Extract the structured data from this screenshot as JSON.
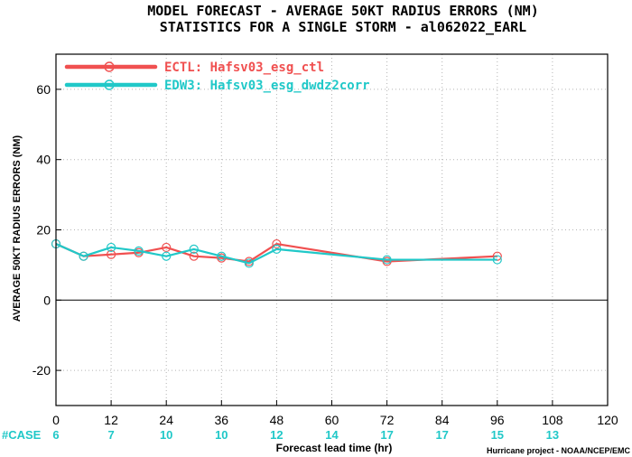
{
  "chart_data": {
    "type": "line",
    "title": "MODEL FORECAST - AVERAGE 50KT RADIUS ERRORS (NM)",
    "subtitle": "STATISTICS FOR A SINGLE STORM - al062022_EARL",
    "xlabel": "Forecast lead time (hr)",
    "ylabel": "AVERAGE 50KT RADIUS ERRORS (NM)",
    "xlim": [
      0,
      120
    ],
    "ylim": [
      -30,
      70
    ],
    "x_ticks": [
      0,
      12,
      24,
      36,
      48,
      60,
      72,
      84,
      96,
      108,
      120
    ],
    "y_ticks": [
      -20,
      0,
      20,
      40,
      60
    ],
    "grid": true,
    "legend_position": "top-left",
    "series": [
      {
        "name": "ECTL: Hafsv03_esg_ctl",
        "color": "#f05050",
        "x": [
          0,
          6,
          12,
          18,
          24,
          30,
          36,
          42,
          48,
          72,
          96
        ],
        "y": [
          16,
          12.5,
          13,
          13.5,
          15,
          12.5,
          12,
          11,
          16,
          11,
          12.5
        ]
      },
      {
        "name": "EDW3: Hafsv03_esg_dwdz2corr",
        "color": "#20c8c8",
        "x": [
          0,
          6,
          12,
          18,
          24,
          30,
          36,
          42,
          48,
          72,
          96
        ],
        "y": [
          16,
          12.5,
          15,
          14,
          12.5,
          14.5,
          12.5,
          10.5,
          14.5,
          11.5,
          11.5
        ]
      }
    ],
    "case_label": "#CASE",
    "case_counts": [
      {
        "x": 0,
        "n": "6"
      },
      {
        "x": 12,
        "n": "7"
      },
      {
        "x": 24,
        "n": "10"
      },
      {
        "x": 36,
        "n": "10"
      },
      {
        "x": 48,
        "n": "12"
      },
      {
        "x": 60,
        "n": "14"
      },
      {
        "x": 72,
        "n": "17"
      },
      {
        "x": 84,
        "n": "17"
      },
      {
        "x": 96,
        "n": "15"
      },
      {
        "x": 108,
        "n": "13"
      }
    ],
    "credit": "Hurricane project - NOAA/NCEP/EMC",
    "case_color": "#20c8c8"
  }
}
